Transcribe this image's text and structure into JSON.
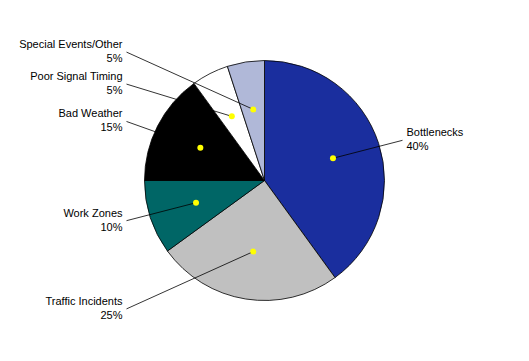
{
  "chart_data": {
    "type": "pie",
    "categories": [
      "Bottlenecks",
      "Traffic Incidents",
      "Work Zones",
      "Bad Weather",
      "Poor Signal Timing",
      "Special Events/Other"
    ],
    "values": [
      40,
      25,
      10,
      15,
      5,
      5
    ],
    "value_labels": [
      "40%",
      "25%",
      "10%",
      "15%",
      "5%",
      "5%"
    ],
    "colors": [
      "#1a2e9e",
      "#c0c0c0",
      "#006666",
      "#000000",
      "#ffffff",
      "#b0b8d8"
    ]
  }
}
